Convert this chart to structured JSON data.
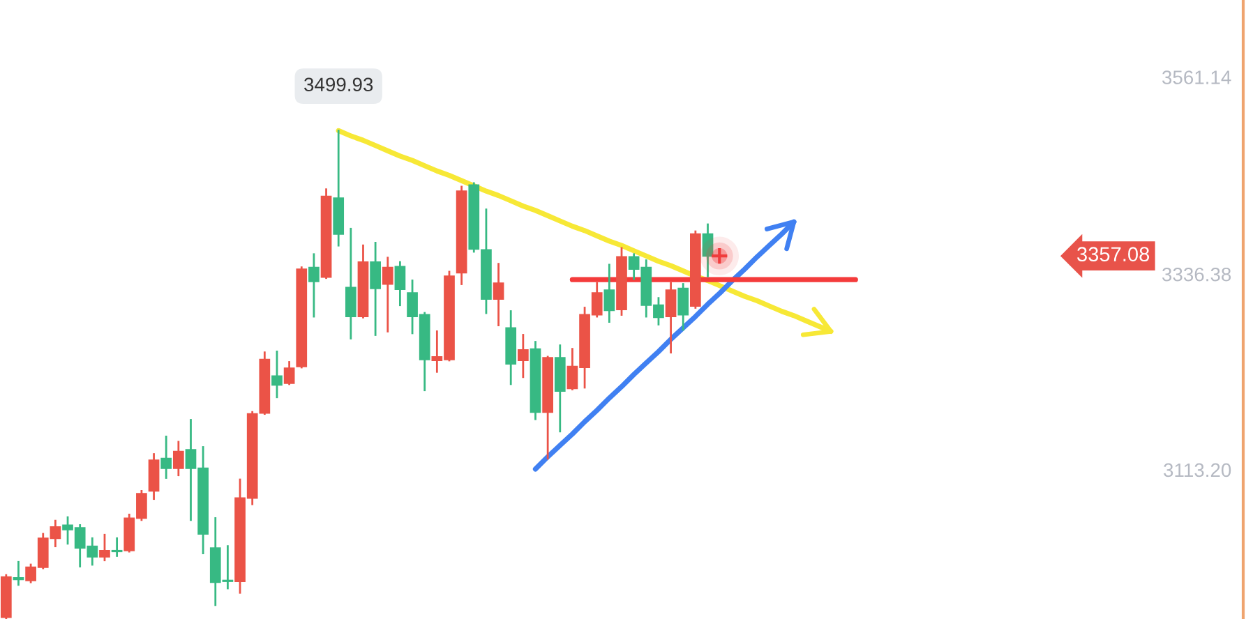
{
  "chart_data": {
    "type": "candlestick",
    "categories": [
      null,
      null,
      null,
      null,
      null,
      null,
      null,
      null,
      null,
      null,
      null,
      null,
      null,
      null,
      null,
      null,
      null,
      null,
      null,
      null,
      null,
      null,
      null,
      null,
      null,
      null,
      null,
      null,
      null,
      null,
      null,
      null,
      null,
      null,
      null,
      null,
      null,
      null,
      null,
      null,
      null,
      null,
      null,
      null,
      null,
      null,
      null,
      null,
      null,
      null,
      null,
      null,
      null,
      null,
      null,
      null,
      null,
      null,
      null,
      null,
      null,
      null,
      null,
      null,
      null,
      null,
      null,
      null,
      null,
      null,
      null,
      null,
      null,
      null,
      null,
      null,
      null,
      null,
      null,
      null,
      null,
      null,
      null,
      null,
      null,
      null,
      null,
      null,
      null,
      null,
      null,
      null,
      null,
      null,
      null,
      null,
      null,
      null,
      null,
      null,
      null
    ],
    "ohlc": [
      [
        2945,
        2993,
        2944,
        2991
      ],
      [
        2990,
        3008,
        2982,
        2988
      ],
      [
        2987,
        3005,
        2985,
        3002
      ],
      [
        3002,
        3040,
        3001,
        3035
      ],
      [
        3035,
        3055,
        3026,
        3048
      ],
      [
        3050,
        3059,
        3029,
        3045
      ],
      [
        3047,
        3050,
        3003,
        3024
      ],
      [
        3026,
        3035,
        3005,
        3014
      ],
      [
        3014,
        3039,
        3010,
        3021
      ],
      [
        3021,
        3035,
        3015,
        3020
      ],
      [
        3021,
        3062,
        3020,
        3058
      ],
      [
        3058,
        3089,
        3056,
        3086
      ],
      [
        3089,
        3131,
        3080,
        3124
      ],
      [
        3126,
        3151,
        3104,
        3115
      ],
      [
        3115,
        3145,
        3107,
        3134
      ],
      [
        3136,
        3170,
        3056,
        3115
      ],
      [
        3115,
        3139,
        3018,
        3040
      ],
      [
        3024,
        3058,
        2959,
        2985
      ],
      [
        2987,
        3026,
        2978,
        2986
      ],
      [
        2986,
        3102,
        2973,
        3081
      ],
      [
        3081,
        3179,
        3074,
        3177
      ],
      [
        3178,
        3247,
        3177,
        3239
      ],
      [
        3220,
        3248,
        3196,
        3210
      ],
      [
        3212,
        3236,
        3211,
        3229
      ],
      [
        3231,
        3344,
        3230,
        3342
      ],
      [
        3344,
        3359,
        3288,
        3328
      ],
      [
        3333,
        3433,
        3332,
        3425
      ],
      [
        3423,
        3499.93,
        3369,
        3382
      ],
      [
        3321,
        3388,
        3263,
        3288
      ],
      [
        3288,
        3369,
        3287,
        3350
      ],
      [
        3350,
        3372,
        3267,
        3320
      ],
      [
        3325,
        3355,
        3271,
        3344
      ],
      [
        3345,
        3350,
        3301,
        3319
      ],
      [
        3315,
        3329,
        3269,
        3288
      ],
      [
        3290,
        3292,
        3204,
        3239
      ],
      [
        3238,
        3271,
        3225,
        3242
      ],
      [
        3239,
        3339,
        3238,
        3334
      ],
      [
        3338,
        3436,
        3325,
        3431
      ],
      [
        3438,
        3440,
        3362,
        3365
      ],
      [
        3364,
        3410,
        3292,
        3308
      ],
      [
        3308,
        3348,
        3278,
        3326
      ],
      [
        3275,
        3294,
        3211,
        3234
      ],
      [
        3238,
        3267,
        3219,
        3250
      ],
      [
        3251,
        3259,
        3171,
        3179
      ],
      [
        3179,
        3242,
        3126,
        3241
      ],
      [
        3241,
        3255,
        3157,
        3203
      ],
      [
        3206,
        3251,
        3205,
        3231
      ],
      [
        3230,
        3298,
        3207,
        3290
      ],
      [
        3290,
        3326,
        3288,
        3315
      ],
      [
        3318,
        3347,
        3282,
        3295
      ],
      [
        3296,
        3366,
        3290,
        3356
      ],
      [
        3356,
        3359,
        3331,
        3342
      ],
      [
        3344,
        3352,
        3288,
        3301
      ],
      [
        3301,
        3309,
        3279,
        3287
      ],
      [
        3288,
        3326,
        3247,
        3318
      ],
      [
        3320,
        3325,
        3273,
        3290
      ],
      [
        3300,
        3385,
        3298,
        3382
      ],
      [
        3382,
        3393,
        3334,
        3357.08
      ],
      null,
      null,
      null,
      null,
      null,
      null,
      null,
      null,
      null,
      null,
      null,
      null,
      null,
      null,
      null,
      null,
      null,
      null,
      null,
      null,
      null,
      null,
      null,
      null,
      null,
      null,
      null,
      null,
      null,
      null,
      null,
      null,
      null,
      null,
      null,
      null,
      null,
      null,
      null,
      null,
      null,
      null,
      null
    ],
    "colors": [
      "#eb5347",
      "#37b983",
      "#eb5347",
      "#eb5347",
      "#eb5347",
      "#37b983",
      "#37b983",
      "#37b983",
      "#eb5347",
      "#37b983",
      "#eb5347",
      "#eb5347",
      "#eb5347",
      "#37b983",
      "#eb5347",
      "#37b983",
      "#37b983",
      "#37b983",
      "#37b983",
      "#eb5347",
      "#eb5347",
      "#eb5347",
      "#37b983",
      "#eb5347",
      "#eb5347",
      "#37b983",
      "#eb5347",
      "#37b983",
      "#37b983",
      "#eb5347",
      "#37b983",
      "#eb5347",
      "#37b983",
      "#37b983",
      "#37b983",
      "#eb5347",
      "#eb5347",
      "#eb5347",
      "#37b983",
      "#37b983",
      "#eb5347",
      "#37b983",
      "#eb5347",
      "#37b983",
      "#eb5347",
      "#37b983",
      "#eb5347",
      "#eb5347",
      "#eb5347",
      "#37b983",
      "#eb5347",
      "#37b983",
      "#37b983",
      "#37b983",
      "#eb5347",
      "#37b983",
      "#eb5347",
      "#37b983",
      null,
      null,
      null,
      null,
      null,
      null,
      null,
      null,
      null,
      null,
      null,
      null,
      null,
      null,
      null,
      null,
      null,
      null,
      null,
      null,
      null,
      null,
      null,
      null,
      null,
      null,
      null,
      null,
      null,
      null,
      null,
      null,
      null,
      null,
      null,
      null,
      null,
      null,
      null,
      null,
      null,
      null,
      null
    ],
    "series": [
      {
        "type": "line",
        "color": "#f7e836",
        "values": [
          null,
          null,
          null,
          null,
          null,
          null,
          null,
          null,
          null,
          null,
          null,
          null,
          null,
          null,
          null,
          null,
          null,
          null,
          null,
          null,
          null,
          null,
          null,
          null,
          null,
          null,
          null,
          3500,
          3494,
          3489,
          3483,
          3477,
          3471,
          3466,
          3460,
          3454,
          3449,
          3443,
          3437,
          3431,
          3426,
          3420,
          3414,
          3409,
          3403,
          3397,
          3391,
          3386,
          3380,
          3374,
          3369,
          3363,
          3357,
          3351,
          3346,
          3340,
          3334,
          3329,
          3323,
          3317,
          3311,
          3306,
          3300,
          3294,
          3289,
          3283,
          3277,
          3271,
          null,
          null,
          null,
          null,
          null,
          null,
          null,
          null,
          null,
          null,
          null,
          null,
          null,
          null,
          null,
          null,
          null,
          null,
          null,
          null,
          null,
          null,
          null,
          null,
          null,
          null,
          null,
          null,
          null,
          null,
          null,
          null,
          null
        ]
      },
      {
        "type": "line",
        "color": "#4080f2",
        "values": [
          null,
          null,
          null,
          null,
          null,
          null,
          null,
          null,
          null,
          null,
          null,
          null,
          null,
          null,
          null,
          null,
          null,
          null,
          null,
          null,
          null,
          null,
          null,
          null,
          null,
          null,
          null,
          null,
          null,
          null,
          null,
          null,
          null,
          null,
          null,
          null,
          null,
          null,
          null,
          null,
          null,
          null,
          null,
          3114,
          3128,
          3141,
          3154,
          3168,
          3181,
          3195,
          3208,
          3222,
          3235,
          3248,
          3262,
          3275,
          3288,
          3302,
          3315,
          3329,
          3342,
          3356,
          3369,
          3382,
          3396,
          null,
          null,
          null,
          null,
          null,
          null,
          null,
          null,
          null,
          null,
          null,
          null,
          null,
          null,
          null,
          null,
          null,
          null,
          null,
          null,
          null,
          null,
          null,
          null,
          null,
          null,
          null,
          null,
          null,
          null,
          null,
          null,
          null,
          null,
          null,
          null
        ]
      },
      {
        "type": "line",
        "color": "#f43b3b",
        "values": [
          null,
          null,
          null,
          null,
          null,
          null,
          null,
          null,
          null,
          null,
          null,
          null,
          null,
          null,
          null,
          null,
          null,
          null,
          null,
          null,
          null,
          null,
          null,
          null,
          null,
          null,
          null,
          null,
          null,
          null,
          null,
          null,
          null,
          null,
          null,
          null,
          null,
          null,
          null,
          null,
          null,
          null,
          null,
          null,
          null,
          null,
          3330,
          3330,
          3330,
          3330,
          3330,
          3330,
          3330,
          3330,
          3330,
          3330,
          3330,
          3330,
          3330,
          3330,
          3330,
          3330,
          3330,
          3330,
          3330,
          3330,
          3330,
          3330,
          3330,
          3330,
          null,
          null,
          null,
          null,
          null,
          null,
          null,
          null,
          null,
          null,
          null,
          null,
          null,
          null,
          null,
          null,
          null,
          null,
          null,
          null,
          null,
          null,
          null,
          null,
          null,
          null,
          null,
          null,
          null,
          null,
          null
        ]
      }
    ],
    "ylim": [
      2943,
      3649
    ],
    "yticks": [
      {
        "value": 3113.2,
        "label": "3113.20"
      },
      3336.38,
      3561.14
    ],
    "tick_labels": "y",
    "annotations": [
      "3499.93",
      "3357.08"
    ]
  }
}
